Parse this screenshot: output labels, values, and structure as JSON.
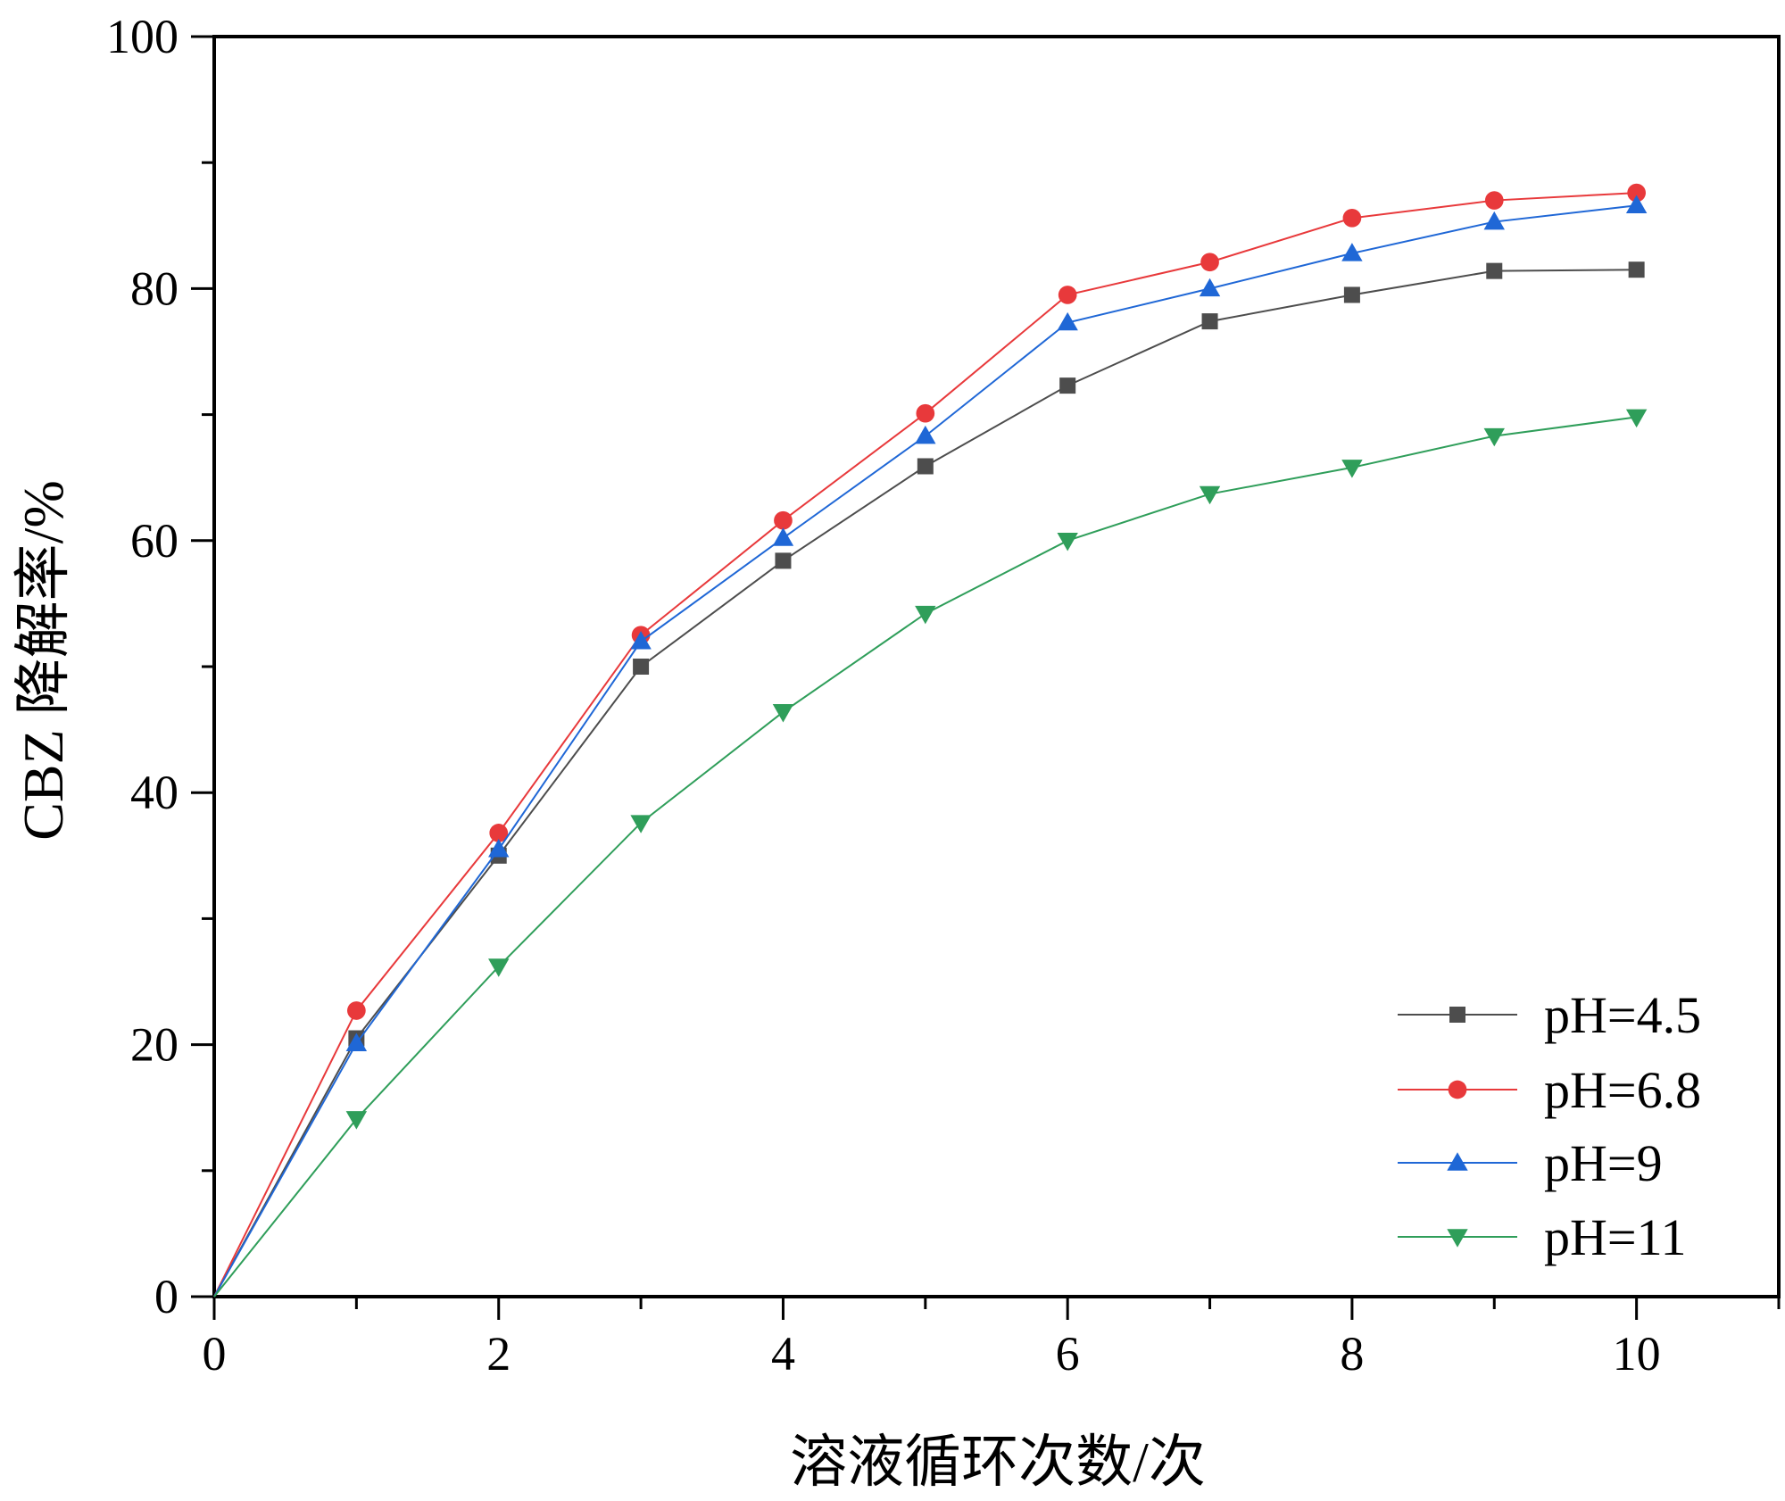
{
  "chart_data": {
    "type": "line",
    "xlabel": "溶液循环次数/次",
    "ylabel": "CBZ 降解率/%",
    "xlim": [
      0,
      11
    ],
    "ylim": [
      0,
      100
    ],
    "xticks": [
      0,
      2,
      4,
      6,
      8,
      10
    ],
    "yticks": [
      0,
      20,
      40,
      60,
      80,
      100
    ],
    "x": [
      0,
      1,
      2,
      3,
      4,
      5,
      6,
      7,
      8,
      9,
      10
    ],
    "grid": false,
    "legend_position": "bottom-right",
    "series": [
      {
        "name": "pH=4.5",
        "marker": "square",
        "color": "#4d4d4d",
        "values": [
          0,
          20.5,
          35.0,
          50.0,
          58.4,
          65.9,
          72.3,
          77.4,
          79.5,
          81.4,
          81.5
        ]
      },
      {
        "name": "pH=6.8",
        "marker": "circle",
        "color": "#e8393b",
        "values": [
          0,
          22.7,
          36.8,
          52.5,
          61.6,
          70.1,
          79.5,
          82.1,
          85.6,
          87.0,
          87.6
        ]
      },
      {
        "name": "pH=9",
        "marker": "triangle-up",
        "color": "#1f67d6",
        "values": [
          0,
          20.1,
          35.5,
          52.0,
          60.2,
          68.3,
          77.3,
          80.0,
          82.8,
          85.3,
          86.6
        ]
      },
      {
        "name": "pH=11",
        "marker": "triangle-down",
        "color": "#2f9e5a",
        "values": [
          0,
          14.1,
          26.2,
          37.6,
          46.4,
          54.2,
          60.0,
          63.7,
          65.8,
          68.3,
          69.8
        ]
      }
    ]
  }
}
